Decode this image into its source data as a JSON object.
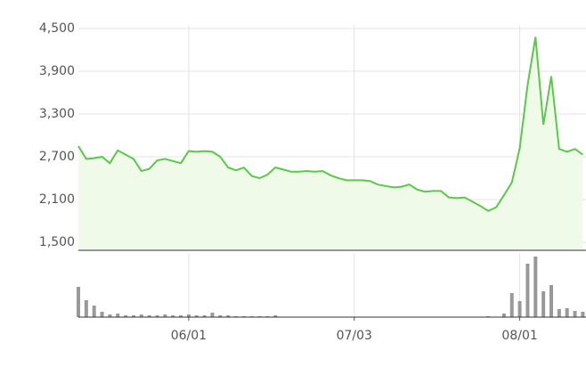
{
  "chart_data": [
    {
      "type": "area",
      "categories": [
        null,
        null,
        null,
        null,
        null,
        null,
        null,
        null,
        null,
        null,
        null,
        null,
        null,
        null,
        "06/01",
        null,
        null,
        null,
        null,
        null,
        null,
        null,
        null,
        null,
        null,
        null,
        null,
        null,
        null,
        null,
        null,
        null,
        null,
        null,
        null,
        "07/03",
        null,
        null,
        null,
        null,
        null,
        null,
        null,
        null,
        null,
        null,
        null,
        null,
        null,
        null,
        null,
        null,
        null,
        null,
        null,
        null,
        "08/01",
        null,
        null,
        null,
        null,
        null,
        null,
        null,
        null
      ],
      "values": [
        2850,
        2670,
        2680,
        2700,
        2610,
        2790,
        2730,
        2670,
        2500,
        2530,
        2650,
        2670,
        2640,
        2610,
        2780,
        2770,
        2780,
        2770,
        2700,
        2550,
        2510,
        2550,
        2430,
        2400,
        2450,
        2550,
        2520,
        2490,
        2490,
        2500,
        2490,
        2500,
        2440,
        2400,
        2370,
        2370,
        2370,
        2360,
        2310,
        2290,
        2270,
        2280,
        2310,
        2240,
        2210,
        2220,
        2220,
        2130,
        2120,
        2130,
        2070,
        2010,
        1940,
        1990,
        2160,
        2340,
        2820,
        3710,
        4380,
        3150,
        3830,
        2810,
        2770,
        2810,
        2730
      ],
      "color": "#5ac84a",
      "ylim": [
        1387.5,
        4550
      ],
      "yticks": [
        {
          "value": 1500,
          "label": "1,500"
        },
        {
          "value": 2100,
          "label": "2,100"
        },
        {
          "value": 2700,
          "label": "2,700"
        },
        {
          "value": 3300,
          "label": "3,300"
        },
        {
          "value": 3900,
          "label": "3,900"
        },
        {
          "value": 4500,
          "label": "4,500"
        }
      ],
      "grid": true
    },
    {
      "type": "bar",
      "values": [
        34,
        19,
        13,
        6,
        3,
        4,
        2,
        2,
        3,
        2,
        2,
        3,
        2,
        2,
        3,
        2,
        2,
        5,
        2,
        2,
        1,
        1,
        1,
        1,
        1,
        2,
        0,
        0,
        0,
        0,
        0,
        0,
        0,
        0,
        0,
        0,
        0,
        0,
        0,
        0,
        0,
        0,
        0,
        0,
        0,
        0,
        0,
        0,
        0,
        0,
        0,
        0,
        1,
        0,
        4,
        27,
        18,
        60,
        68,
        29,
        36,
        9,
        10,
        7,
        6
      ],
      "color": "#999999",
      "ylim": [
        0,
        72
      ]
    }
  ]
}
